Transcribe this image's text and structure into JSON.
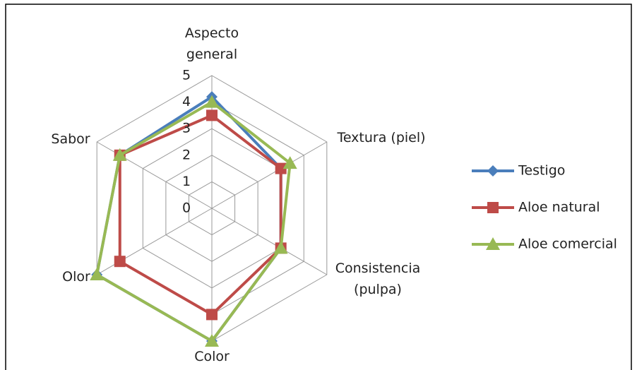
{
  "chart_data": {
    "type": "radar",
    "categories": [
      "Aspecto general",
      "Textura (piel)",
      "Consistencia (pulpa)",
      "Color",
      "Olor",
      "Sabor"
    ],
    "series": [
      {
        "name": "Testigo",
        "color": "#4a7ebb",
        "marker": "diamond",
        "values": [
          4.2,
          3,
          3,
          5,
          5,
          4
        ]
      },
      {
        "name": "Aloe natural",
        "color": "#be4b48",
        "marker": "square",
        "values": [
          3.5,
          3,
          3,
          4,
          4,
          4
        ]
      },
      {
        "name": "Aloe comercial",
        "color": "#98b954",
        "marker": "triangle",
        "values": [
          4,
          3.4,
          3,
          5,
          5,
          4
        ]
      }
    ],
    "ylim": [
      0,
      5
    ],
    "yticks": [
      0,
      1,
      2,
      3,
      4,
      5
    ],
    "grid": true,
    "legend": "right"
  }
}
